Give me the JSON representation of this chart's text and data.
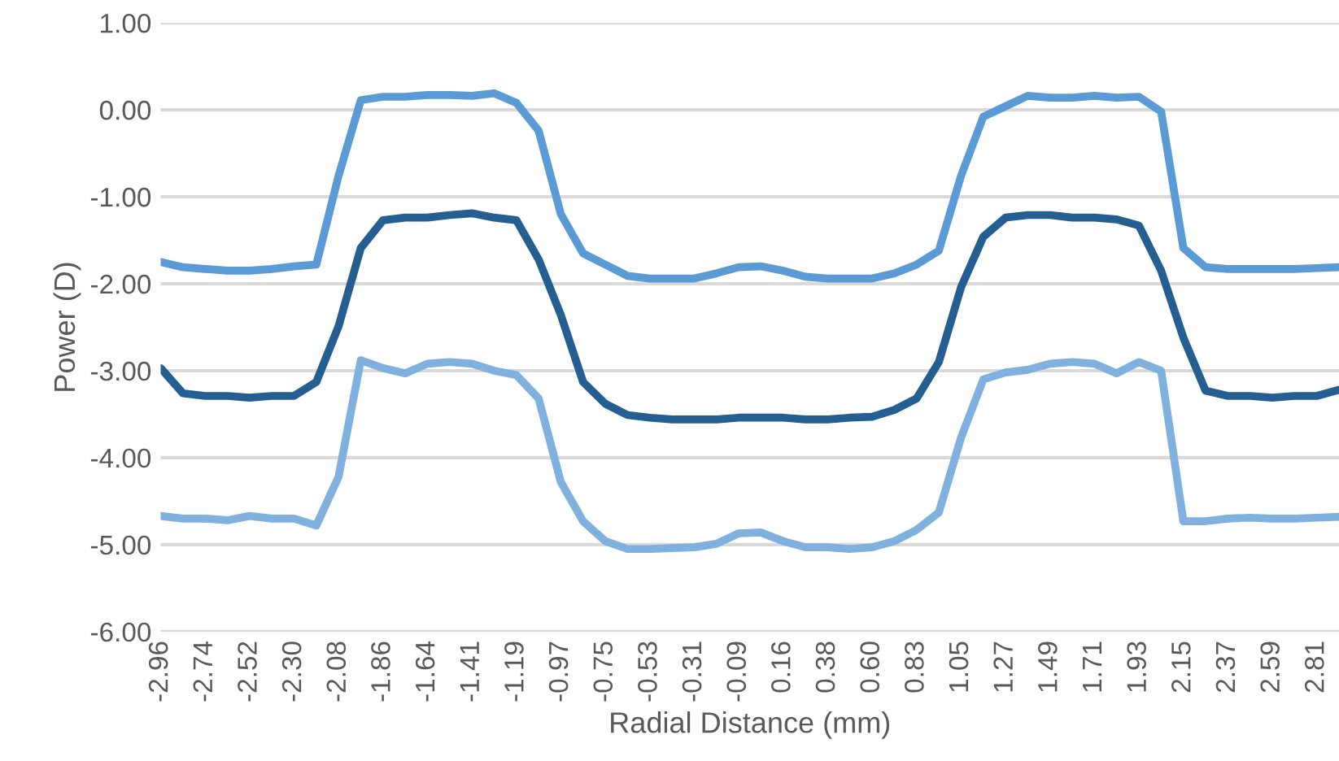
{
  "chart_data": {
    "type": "line",
    "xlabel": "Radial Distance (mm)",
    "ylabel": "Power (D)",
    "categories": [
      "-2.96",
      null,
      "-2.74",
      null,
      "-2.52",
      null,
      "-2.30",
      null,
      "-2.08",
      null,
      "-1.86",
      null,
      "-1.64",
      null,
      "-1.41",
      null,
      "-1.19",
      null,
      "-0.97",
      null,
      "-0.75",
      null,
      "-0.53",
      null,
      "-0.31",
      null,
      "-0.09",
      null,
      "0.16",
      null,
      "0.38",
      null,
      "0.60",
      null,
      "0.83",
      null,
      "1.05",
      null,
      "1.27",
      null,
      "1.49",
      null,
      "1.71",
      null,
      "1.93",
      null,
      "2.15",
      null,
      "2.37",
      null,
      "2.59",
      null,
      "2.81",
      null
    ],
    "series": [
      {
        "color": "#5b9bd5",
        "values": [
          -1.75,
          -1.81,
          -1.83,
          -1.85,
          -1.85,
          -1.83,
          -1.8,
          -1.78,
          -0.76,
          0.11,
          0.15,
          0.15,
          0.17,
          0.17,
          0.16,
          0.19,
          0.08,
          -0.24,
          -1.2,
          -1.65,
          -1.78,
          -1.91,
          -1.94,
          -1.94,
          -1.94,
          -1.88,
          -1.81,
          -1.8,
          -1.85,
          -1.92,
          -1.94,
          -1.94,
          -1.94,
          -1.88,
          -1.78,
          -1.62,
          -0.76,
          -0.08,
          0.04,
          0.16,
          0.14,
          0.14,
          0.16,
          0.14,
          0.15,
          -0.02,
          -1.59,
          -1.81,
          -1.83,
          -1.83,
          -1.83,
          -1.83,
          -1.82,
          -1.81
        ]
      },
      {
        "color": "#255e91",
        "values": [
          -2.97,
          -3.26,
          -3.29,
          -3.29,
          -3.31,
          -3.29,
          -3.29,
          -3.13,
          -2.49,
          -1.59,
          -1.27,
          -1.24,
          -1.24,
          -1.21,
          -1.19,
          -1.24,
          -1.27,
          -1.72,
          -2.36,
          -3.13,
          -3.38,
          -3.51,
          -3.54,
          -3.56,
          -3.56,
          -3.56,
          -3.54,
          -3.54,
          -3.54,
          -3.56,
          -3.56,
          -3.54,
          -3.53,
          -3.45,
          -3.32,
          -2.9,
          -2.04,
          -1.46,
          -1.24,
          -1.21,
          -1.21,
          -1.24,
          -1.24,
          -1.26,
          -1.33,
          -1.85,
          -2.62,
          -3.23,
          -3.29,
          -3.29,
          -3.31,
          -3.29,
          -3.29,
          -3.22
        ]
      },
      {
        "color": "#7fb0de",
        "values": [
          -4.67,
          -4.7,
          -4.7,
          -4.72,
          -4.67,
          -4.7,
          -4.7,
          -4.78,
          -4.22,
          -2.88,
          -2.97,
          -3.03,
          -2.92,
          -2.9,
          -2.92,
          -3.0,
          -3.05,
          -3.32,
          -4.28,
          -4.73,
          -4.96,
          -5.05,
          -5.05,
          -5.04,
          -5.03,
          -4.99,
          -4.87,
          -4.86,
          -4.96,
          -5.03,
          -5.03,
          -5.05,
          -5.03,
          -4.96,
          -4.83,
          -4.63,
          -3.77,
          -3.1,
          -3.02,
          -2.99,
          -2.92,
          -2.9,
          -2.92,
          -3.03,
          -2.9,
          -3.0,
          -4.73,
          -4.73,
          -4.7,
          -4.69,
          -4.7,
          -4.7,
          -4.69,
          -4.68
        ]
      }
    ],
    "ylim": [
      -6,
      1
    ],
    "yticks": [
      {
        "value": 1,
        "label": "1.00"
      },
      {
        "value": 0,
        "label": "0.00"
      },
      {
        "value": -1,
        "label": "-1.00"
      },
      {
        "value": -2,
        "label": "-2.00"
      },
      {
        "value": -3,
        "label": "-3.00"
      },
      {
        "value": -4,
        "label": "-4.00"
      },
      {
        "value": -5,
        "label": "-5.00"
      },
      {
        "value": -6,
        "label": "-6.00"
      }
    ],
    "grid": "y",
    "marker": "none",
    "line_style": "solid"
  }
}
